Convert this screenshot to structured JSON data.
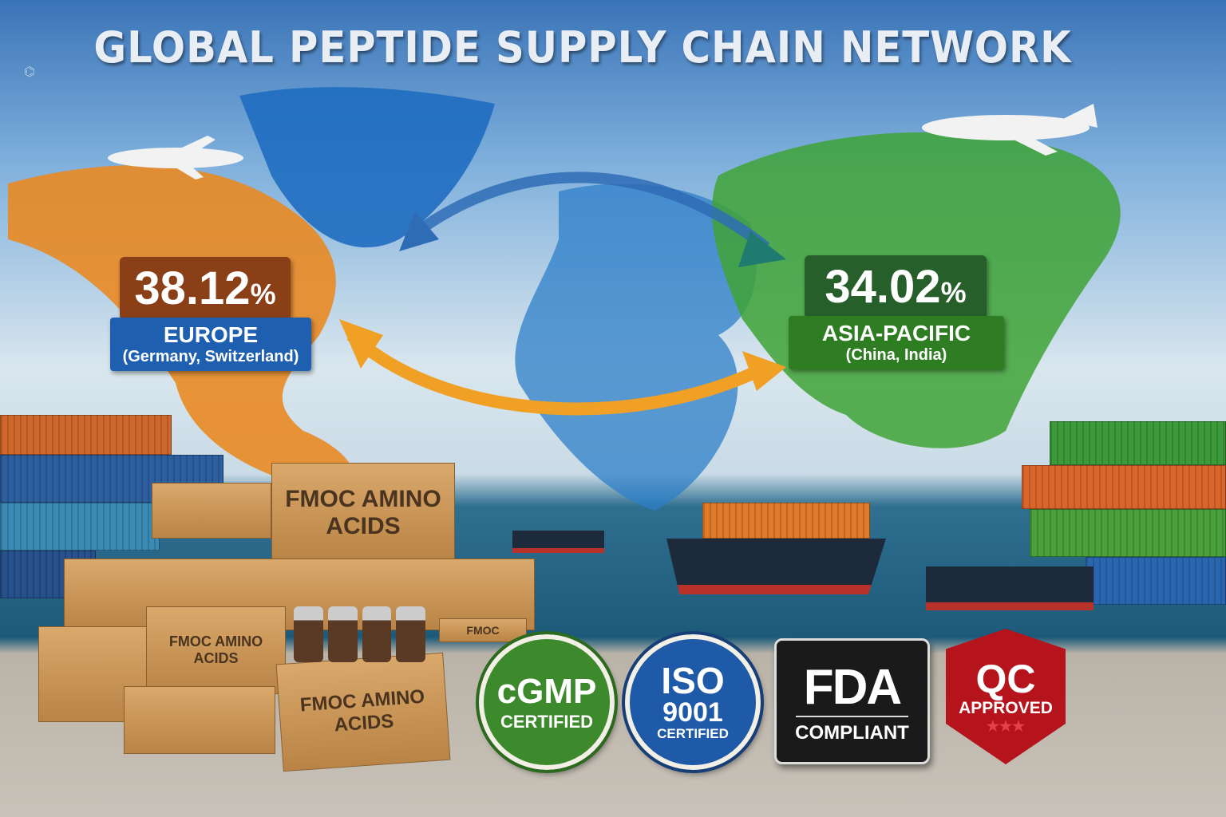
{
  "title": "GLOBAL PEPTIDE SUPPLY CHAIN NETWORK",
  "europe": {
    "share": "38.12",
    "unit": "%",
    "region": "EUROPE",
    "countries": "(Germany, Switzerland)",
    "color": "#1e5fb0",
    "share_color": "#8a3f16"
  },
  "asia": {
    "share": "34.02",
    "unit": "%",
    "region": "ASIA-PACIFIC",
    "countries": "(China, India)",
    "color": "#2f7d23",
    "share_color": "#265f2a"
  },
  "boxes": {
    "large": "FMOC AMINO ACIDS",
    "front": "FMOC AMINO ACIDS",
    "left": "FMOC AMINO ACIDS",
    "small": "FMOC"
  },
  "badges": [
    {
      "top": "cGMP",
      "bottom": "CERTIFIED",
      "color": "#3d8a2c"
    },
    {
      "top": "ISO",
      "mid": "9001",
      "bottom": "CERTIFIED",
      "color": "#1e5aa8"
    },
    {
      "top": "FDA",
      "bottom": "COMPLIANT",
      "color": "#1a1a1a"
    },
    {
      "top": "QC",
      "bottom": "APPROVED",
      "color": "#b5141c"
    }
  ]
}
